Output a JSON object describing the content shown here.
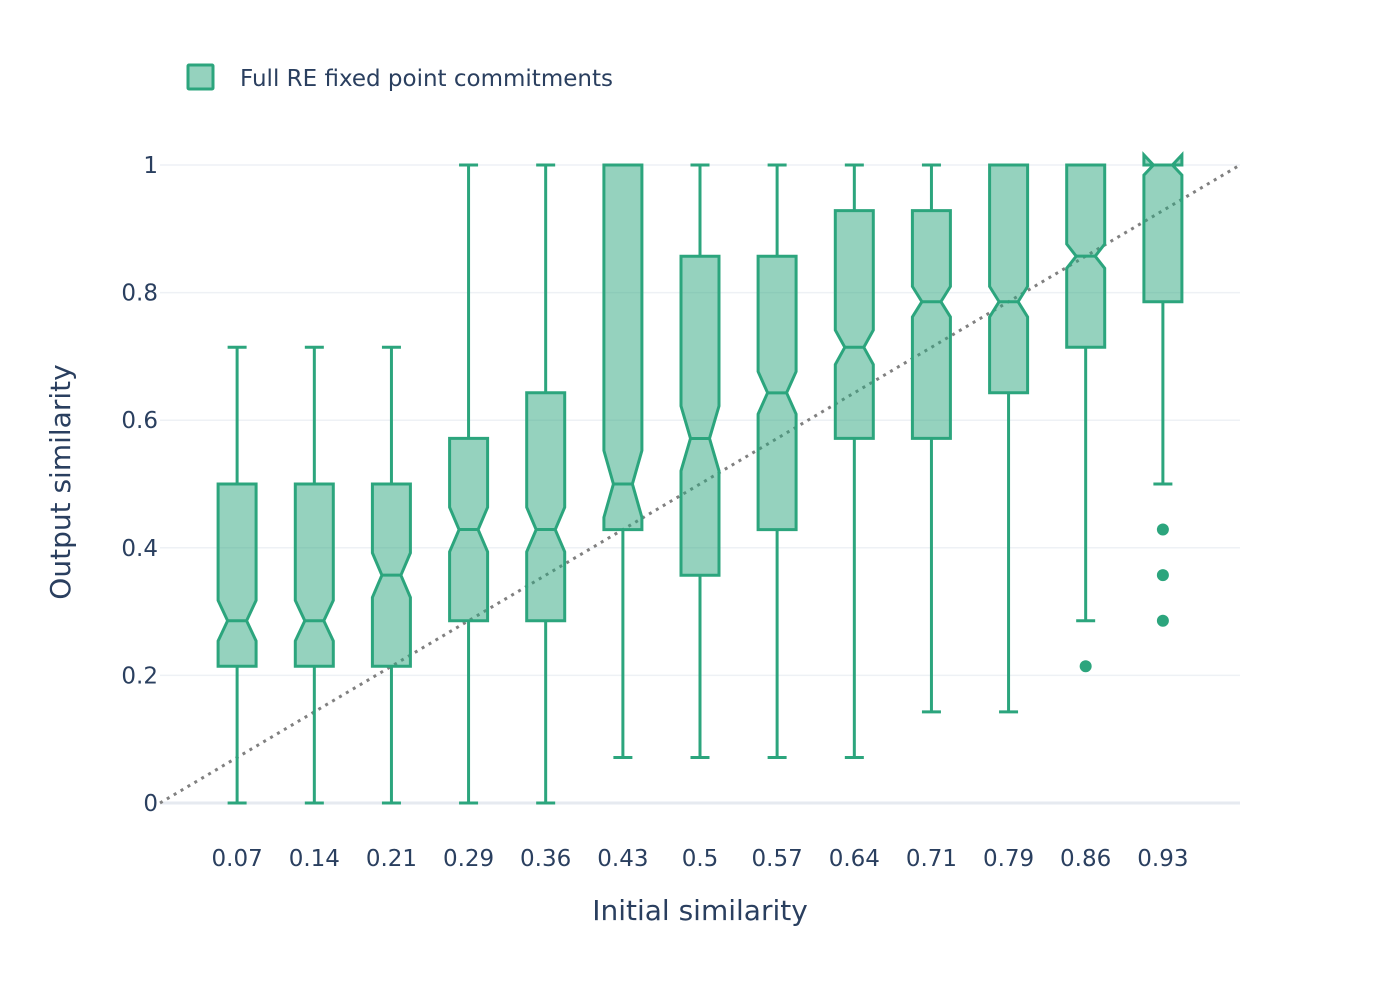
{
  "chart_data": {
    "type": "box",
    "notched": true,
    "series": [
      {
        "name": "Full RE fixed point commitments",
        "color": "#2ca57d",
        "fill": "rgba(44,165,125,0.5)",
        "boxes": [
          {
            "x": 0.0714,
            "label": "0.07",
            "lowerfence": 0,
            "q1": 0.2143,
            "median": 0.2857,
            "q3": 0.5,
            "upperfence": 0.7143,
            "notch_low": 0.2539,
            "notch_high": 0.3175,
            "outliers": []
          },
          {
            "x": 0.1429,
            "label": "0.14",
            "lowerfence": 0,
            "q1": 0.2143,
            "median": 0.2857,
            "q3": 0.5,
            "upperfence": 0.7143,
            "notch_low": 0.2539,
            "notch_high": 0.3175,
            "outliers": []
          },
          {
            "x": 0.2143,
            "label": "0.21",
            "lowerfence": 0,
            "q1": 0.2143,
            "median": 0.3571,
            "q3": 0.5,
            "upperfence": 0.7143,
            "notch_low": 0.3222,
            "notch_high": 0.392,
            "outliers": []
          },
          {
            "x": 0.2857,
            "label": "0.29",
            "lowerfence": 0,
            "q1": 0.2857,
            "median": 0.4286,
            "q3": 0.5714,
            "upperfence": 1,
            "notch_low": 0.3937,
            "notch_high": 0.4635,
            "outliers": []
          },
          {
            "x": 0.3571,
            "label": "0.36",
            "lowerfence": 0,
            "q1": 0.2857,
            "median": 0.4286,
            "q3": 0.6429,
            "upperfence": 1,
            "notch_low": 0.3937,
            "notch_high": 0.4635,
            "outliers": []
          },
          {
            "x": 0.4286,
            "label": "0.43",
            "lowerfence": 0.0714,
            "q1": 0.4286,
            "median": 0.5,
            "q3": 1,
            "upperfence": 1,
            "notch_low": 0.4476,
            "notch_high": 0.5524,
            "outliers": []
          },
          {
            "x": 0.5,
            "label": "0.5",
            "lowerfence": 0.0714,
            "q1": 0.3571,
            "median": 0.5714,
            "q3": 0.8571,
            "upperfence": 1,
            "notch_low": 0.5206,
            "notch_high": 0.6222,
            "outliers": []
          },
          {
            "x": 0.5714,
            "label": "0.57",
            "lowerfence": 0.0714,
            "q1": 0.4286,
            "median": 0.6429,
            "q3": 0.8571,
            "upperfence": 1,
            "notch_low": 0.6095,
            "notch_high": 0.6762,
            "outliers": []
          },
          {
            "x": 0.6429,
            "label": "0.64",
            "lowerfence": 0.0714,
            "q1": 0.5714,
            "median": 0.7143,
            "q3": 0.9286,
            "upperfence": 1,
            "notch_low": 0.6873,
            "notch_high": 0.7413,
            "outliers": []
          },
          {
            "x": 0.7143,
            "label": "0.71",
            "lowerfence": 0.1429,
            "q1": 0.5714,
            "median": 0.7857,
            "q3": 0.9286,
            "upperfence": 1,
            "notch_low": 0.7619,
            "notch_high": 0.8095,
            "outliers": []
          },
          {
            "x": 0.7857,
            "label": "0.79",
            "lowerfence": 0.1429,
            "q1": 0.6429,
            "median": 0.7857,
            "q3": 1,
            "upperfence": 1,
            "notch_low": 0.7619,
            "notch_high": 0.8095,
            "outliers": []
          },
          {
            "x": 0.8571,
            "label": "0.86",
            "lowerfence": 0.2857,
            "q1": 0.7143,
            "median": 0.8571,
            "q3": 1,
            "upperfence": 1,
            "notch_low": 0.8381,
            "notch_high": 0.8762,
            "outliers": [
              0.2143
            ]
          },
          {
            "x": 0.9286,
            "label": "0.93",
            "lowerfence": 0.5,
            "q1": 0.7857,
            "median": 1,
            "q3": 1,
            "upperfence": 1,
            "notch_low": 0.9841,
            "notch_high": 1.0159,
            "outliers": [
              0.2857,
              0.3571,
              0.4286
            ]
          }
        ]
      }
    ],
    "reference_line": {
      "style": "dotted",
      "color": "#808080",
      "x": [
        0,
        1
      ],
      "y": [
        0,
        1
      ]
    },
    "xlabel": "Initial similarity",
    "ylabel": "Output similarity",
    "xlim": [
      0,
      1
    ],
    "ylim": [
      0,
      1
    ],
    "yticks": [
      0,
      0.2,
      0.4,
      0.6,
      0.8,
      1
    ],
    "ytick_labels": [
      "0",
      "0.2",
      "0.4",
      "0.6",
      "0.8",
      "1"
    ],
    "grid": true,
    "legend_position": "top-left"
  }
}
